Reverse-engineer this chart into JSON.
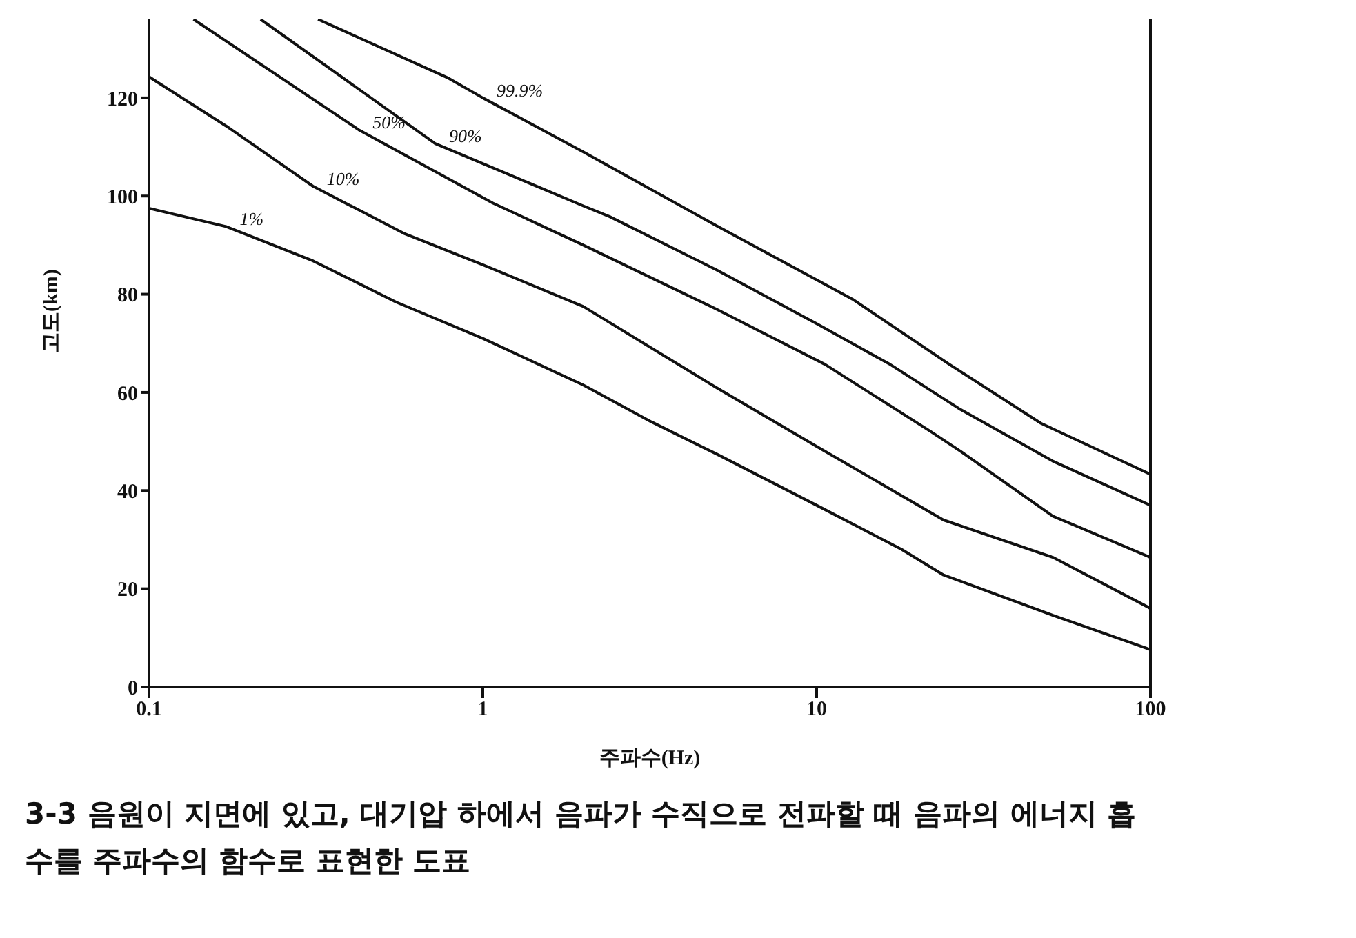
{
  "chart_data": {
    "type": "line",
    "xlabel": "주파수(Hz)",
    "ylabel": "고도(km)",
    "annotations": [
      "3-3 음원이 지면에 있고, 대기압 하에서 음파가 수직으로 전파할 때 음파의 에너지 흡수를 주파수의 함수로 표현한 도표"
    ],
    "log": "x",
    "xlim": [
      0.1,
      100
    ],
    "xticks": [
      0.1,
      1,
      10,
      100
    ],
    "ylim": [
      0,
      136
    ],
    "yticks": [
      0,
      20,
      40,
      60,
      80,
      100,
      120
    ],
    "grid": false,
    "legend": false,
    "marker": "none",
    "line_style": "solid",
    "series": [
      {
        "name": "1%",
        "color": "#111111",
        "x": [
          0.1,
          0.17,
          0.31,
          0.55,
          1,
          2,
          3.2,
          5,
          10,
          18,
          24,
          51,
          100
        ],
        "values": [
          97.5,
          93.8,
          86.8,
          78.4,
          71,
          61.5,
          54,
          47.5,
          37,
          28,
          22.8,
          14.6,
          7.6
        ]
      },
      {
        "name": "10%",
        "color": "#111111",
        "x": [
          0.1,
          0.17,
          0.31,
          0.58,
          1,
          2,
          5,
          10,
          24,
          51,
          100
        ],
        "values": [
          124.3,
          114.3,
          102,
          92.4,
          86,
          77.5,
          61,
          49,
          34,
          26.4,
          16
        ]
      },
      {
        "name": "50%",
        "color": "#111111",
        "x": [
          0.136,
          0.425,
          1.07,
          2,
          5,
          10.6,
          22,
          27,
          51,
          100
        ],
        "values": [
          136,
          113.5,
          98.6,
          90,
          77,
          65.7,
          52,
          48,
          34.8,
          26.4
        ]
      },
      {
        "name": "90%",
        "color": "#111111",
        "x": [
          0.216,
          0.72,
          2,
          2.4,
          5,
          10,
          16.6,
          27,
          51,
          100
        ],
        "values": [
          136,
          110.7,
          98,
          95.8,
          85,
          74,
          65.7,
          56.5,
          46,
          37
        ]
      },
      {
        "name": "99.9%",
        "color": "#111111",
        "x": [
          0.321,
          0.79,
          1,
          2,
          2.4,
          5,
          12.8,
          25,
          47,
          100
        ],
        "values": [
          136,
          124,
          120,
          109,
          106,
          94,
          79,
          65.7,
          53.7,
          43.3
        ]
      }
    ]
  }
}
